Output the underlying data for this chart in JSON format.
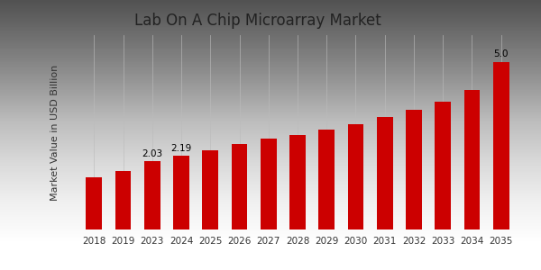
{
  "title": "Lab On A Chip Microarray Market",
  "ylabel": "Market Value in USD Billion",
  "categories": [
    "2018",
    "2019",
    "2023",
    "2024",
    "2025",
    "2026",
    "2027",
    "2028",
    "2029",
    "2030",
    "2031",
    "2032",
    "2033",
    "2034",
    "2035"
  ],
  "values": [
    1.55,
    1.75,
    2.03,
    2.19,
    2.37,
    2.55,
    2.72,
    2.82,
    2.98,
    3.15,
    3.35,
    3.58,
    3.8,
    4.15,
    5.0
  ],
  "bar_color": "#cc0000",
  "bar_labels": {
    "2023": "2.03",
    "2024": "2.19",
    "2035": "5.0"
  },
  "bg_color_top": "#d8d8d8",
  "bg_color_bottom": "#c8c8c8",
  "ylim": [
    0,
    5.8
  ],
  "title_fontsize": 12,
  "label_fontsize": 7.5,
  "tick_fontsize": 7.5,
  "ylabel_fontsize": 8,
  "bottom_bar_color": "#cc0000",
  "separator_color": "#bbbbbb",
  "grid_line_color": "#c0c0c0"
}
